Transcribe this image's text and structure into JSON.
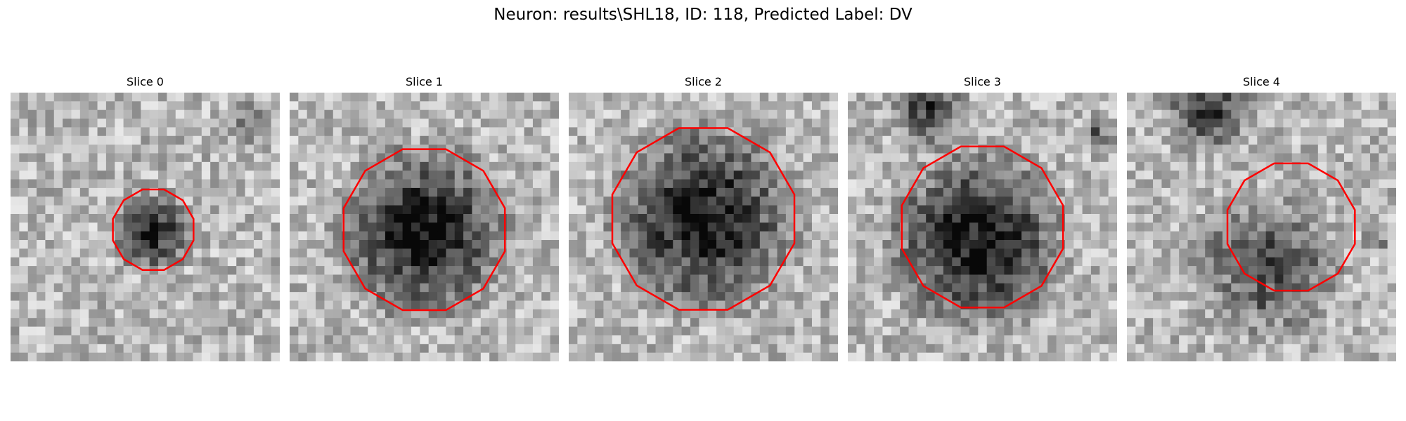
{
  "figure": {
    "title": "Neuron: results\\SHL18, ID: 118, Predicted Label: DV"
  },
  "colors": {
    "contour": "#ff0000",
    "background": "#ffffff"
  },
  "panels": [
    {
      "title": "Slice 0"
    },
    {
      "title": "Slice 1"
    },
    {
      "title": "Slice 2"
    },
    {
      "title": "Slice 3"
    },
    {
      "title": "Slice 4"
    }
  ]
}
